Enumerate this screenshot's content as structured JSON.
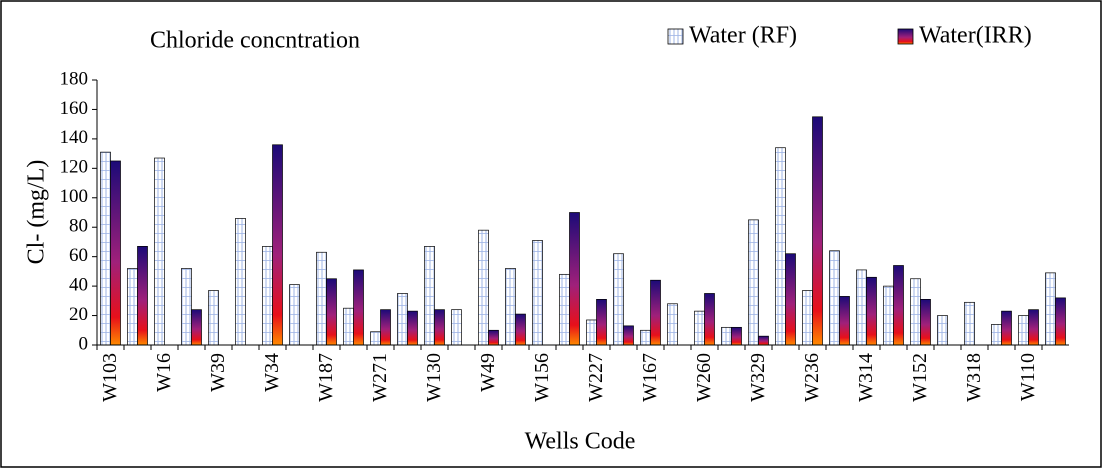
{
  "chart_data": {
    "type": "bar",
    "title": "Chloride concntration",
    "xlabel": "Wells Code",
    "ylabel": "Cl- (mg/L)",
    "categories": [
      "W103",
      null,
      "W16",
      null,
      "W39",
      null,
      "W34",
      null,
      "W187",
      null,
      "W271",
      null,
      "W130",
      null,
      "W49",
      null,
      "W156",
      null,
      "W227",
      null,
      "W167",
      null,
      "W260",
      null,
      "W329",
      null,
      "W236",
      null,
      "W314",
      null,
      "W152",
      null,
      "W318",
      null,
      "W110",
      null
    ],
    "series": [
      {
        "name": "Water (RF)",
        "color": "#9fb4e6",
        "values": [
          131,
          52,
          127,
          52,
          37,
          86,
          67,
          41,
          63,
          25,
          9,
          35,
          67,
          24,
          78,
          52,
          71,
          48,
          17,
          62,
          10,
          28,
          23,
          12,
          85,
          134,
          37,
          64,
          51,
          40,
          45,
          20,
          29,
          14,
          20,
          49
        ]
      },
      {
        "name": "Water(IRR)",
        "color": "#1c0a78",
        "values": [
          125,
          67,
          null,
          24,
          null,
          null,
          136,
          null,
          45,
          51,
          24,
          23,
          24,
          null,
          10,
          21,
          null,
          90,
          31,
          13,
          44,
          null,
          35,
          12,
          6,
          62,
          155,
          33,
          46,
          54,
          31,
          null,
          null,
          23,
          24,
          32
        ]
      }
    ],
    "ylim": [
      0,
      180
    ],
    "yticks": [
      0,
      20,
      40,
      60,
      80,
      100,
      120,
      140,
      160,
      180
    ],
    "legend": "top-right"
  }
}
